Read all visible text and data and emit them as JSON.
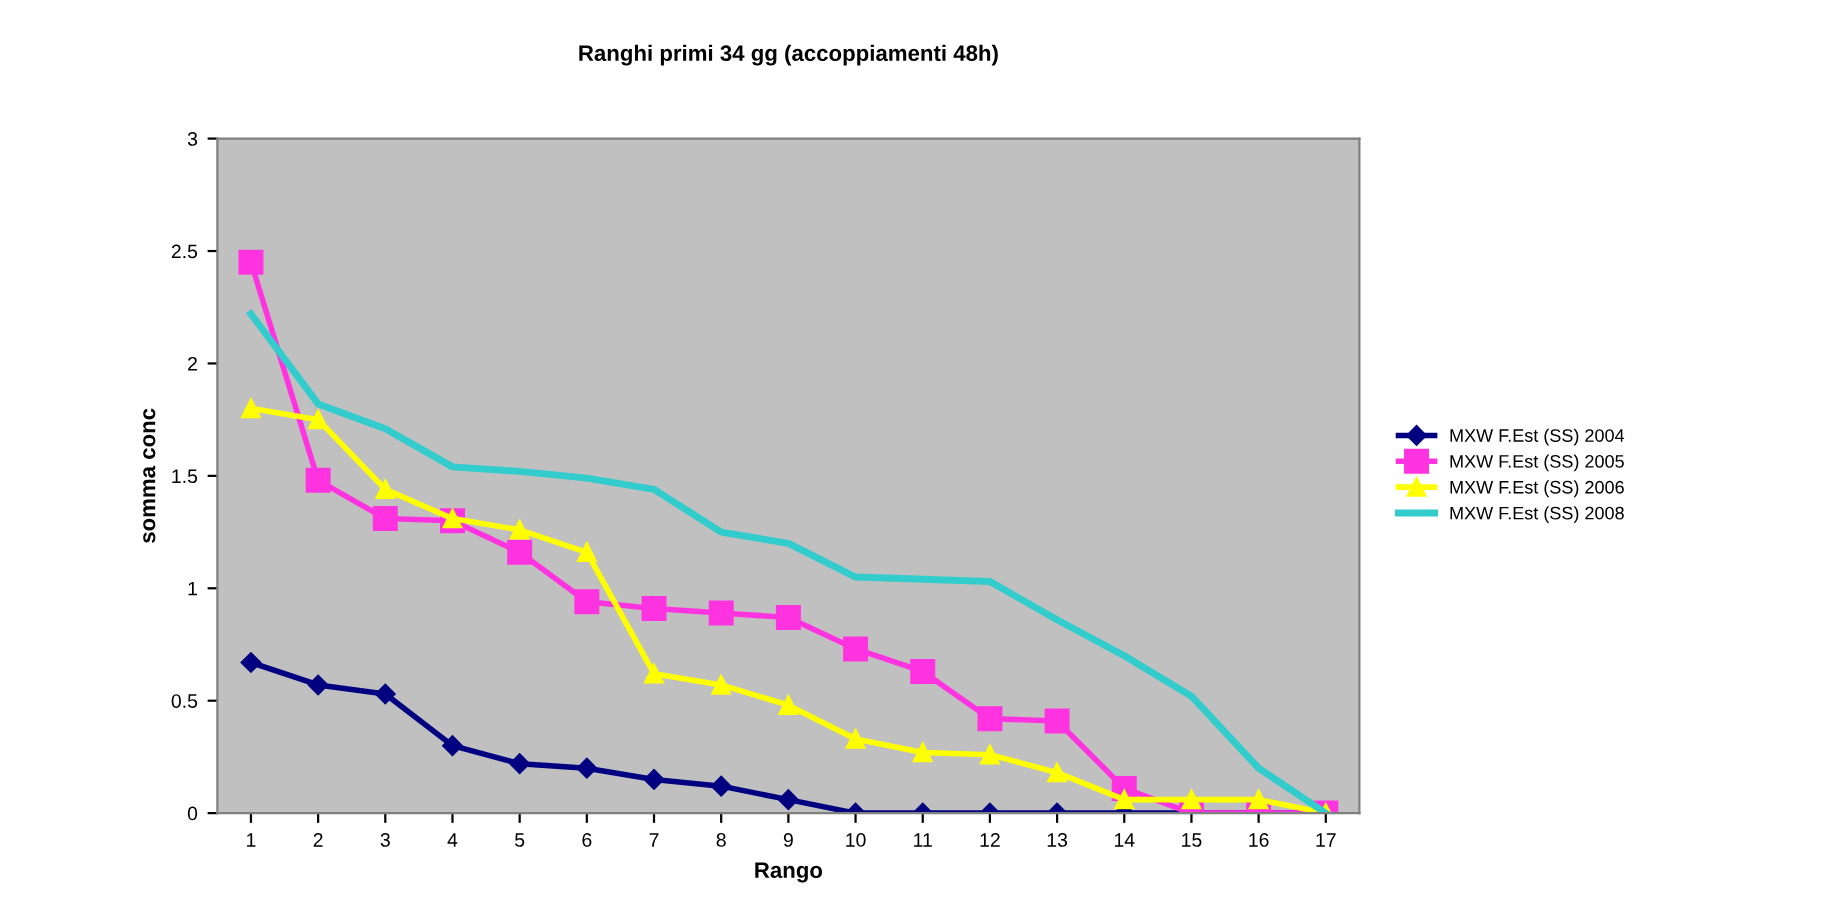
{
  "chart_data": {
    "type": "line",
    "title": "Ranghi primi 34 gg (accoppiamenti 48h)",
    "xlabel": "Rango",
    "ylabel": "somma conc",
    "categories": [
      "1",
      "2",
      "3",
      "4",
      "5",
      "6",
      "7",
      "8",
      "9",
      "10",
      "11",
      "12",
      "13",
      "14",
      "15",
      "16",
      "17"
    ],
    "series": [
      {
        "name": "MXW F.Est (SS) 2004",
        "color": "#000080",
        "marker": "diamond",
        "values": [
          0.67,
          0.57,
          0.53,
          0.3,
          0.22,
          0.2,
          0.15,
          0.12,
          0.06,
          0,
          0,
          0,
          0,
          0,
          0,
          0,
          0
        ]
      },
      {
        "name": "MXW F.Est (SS) 2005",
        "color": "#ff33e0",
        "marker": "square",
        "values": [
          2.45,
          1.48,
          1.31,
          1.3,
          1.16,
          0.94,
          0.91,
          0.89,
          0.87,
          0.73,
          0.63,
          0.42,
          0.41,
          0.11,
          0,
          0,
          0
        ]
      },
      {
        "name": "MXW F.Est (SS) 2006",
        "color": "#ffff00",
        "marker": "triangle",
        "values": [
          1.8,
          1.75,
          1.44,
          1.31,
          1.26,
          1.16,
          0.62,
          0.57,
          0.48,
          0.33,
          0.27,
          0.26,
          0.18,
          0.06,
          0.06,
          0.06,
          0
        ]
      },
      {
        "name": "MXW F.Est (SS) 2008",
        "color": "#33cccc",
        "marker": "none",
        "values": [
          2.22,
          1.82,
          1.71,
          1.54,
          1.52,
          1.49,
          1.44,
          1.25,
          1.2,
          1.05,
          1.04,
          1.03,
          0.86,
          0.7,
          0.52,
          0.2,
          0
        ]
      }
    ],
    "ylim": [
      0,
      3
    ],
    "yticks": [
      0,
      0.5,
      1,
      1.5,
      2,
      2.5,
      3
    ],
    "grid": false,
    "legend": "right",
    "line_style": "solid"
  }
}
